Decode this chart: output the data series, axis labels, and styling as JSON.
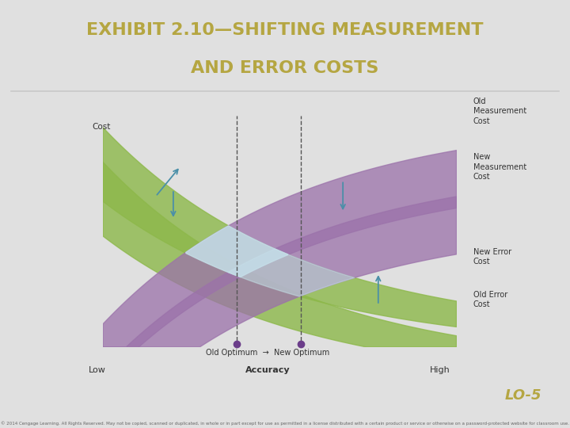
{
  "title_line1": "EXHIBIT 2.10—SHIFTING MEASUREMENT",
  "title_line2": "AND ERROR COSTS",
  "title_color": "#b5a642",
  "title_fontsize": 16,
  "bg_outer": "#e0e0e0",
  "bg_frame": "#8ecae6",
  "bg_plot": "#f5f0dc",
  "green_color": "#8db84a",
  "purple_color": "#9b72aa",
  "light_blue_overlap": "#c5dfe8",
  "arrow_color": "#4a8fa8",
  "dot_color": "#6b3d8a",
  "dashed_color": "#555555",
  "text_color": "#333333",
  "label_cost": "Cost",
  "label_low": "Low",
  "label_high": "High",
  "label_accuracy": "Accuracy",
  "label_old_meas": "Old\nMeasurement\nCost",
  "label_new_meas": "New\nMeasurement\nCost",
  "label_new_error": "New Error\nCost",
  "label_old_error": "Old Error\nCost",
  "separator_color": "#c8c8c8",
  "copyright_text": "© 2014 Cengage Learning. All Rights Reserved. May not be copied, scanned or duplicated, in whole or in part except for use as permitted in a license distributed with a certain product or service or otherwise on a password-protected website for classroom use.",
  "lo5_color": "#b5a642",
  "lo5_text": "LO-5"
}
